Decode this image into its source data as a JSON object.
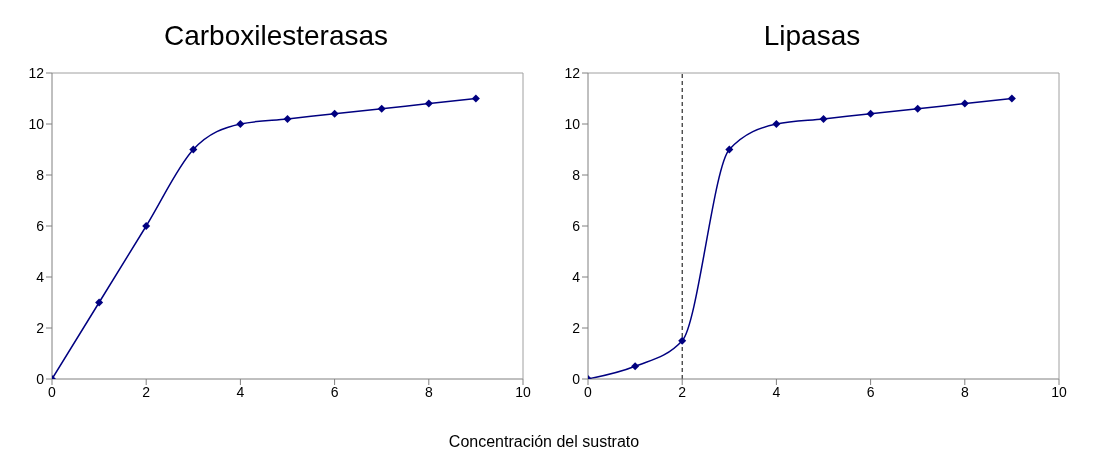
{
  "chart_data": [
    {
      "type": "line",
      "title": "Carboxilesterasas",
      "x": [
        0,
        1,
        2,
        3,
        4,
        5,
        6,
        7,
        8,
        9
      ],
      "values": [
        0,
        3,
        6,
        9,
        10,
        10.2,
        10.4,
        10.6,
        10.8,
        11
      ],
      "color": "#000080",
      "marker": "diamond",
      "line_style": "solid",
      "xlim": [
        0,
        10
      ],
      "xticks": [
        0,
        2,
        4,
        6,
        8,
        10
      ],
      "ylim": [
        0,
        12
      ],
      "yticks": [
        0,
        2,
        4,
        6,
        8,
        10,
        12
      ],
      "grid": false,
      "legend": false
    },
    {
      "type": "line",
      "title": "Lipasas",
      "xlabel": "Concentración del sustrato",
      "x": [
        0,
        1,
        2,
        3,
        4,
        5,
        6,
        7,
        8,
        9
      ],
      "values": [
        0,
        0.5,
        1.5,
        9,
        10,
        10.2,
        10.4,
        10.6,
        10.8,
        11
      ],
      "color": "#000080",
      "marker": "diamond",
      "line_style": "solid",
      "xlim": [
        0,
        10
      ],
      "xticks": [
        0,
        2,
        4,
        6,
        8,
        10
      ],
      "ylim": [
        0,
        12
      ],
      "yticks": [
        0,
        2,
        4,
        6,
        8,
        10,
        12
      ],
      "grid": false,
      "legend": false,
      "ref_lines": [
        {
          "axis": "x",
          "value": 2,
          "line_style": "dashed",
          "color": "#000000"
        }
      ]
    }
  ]
}
